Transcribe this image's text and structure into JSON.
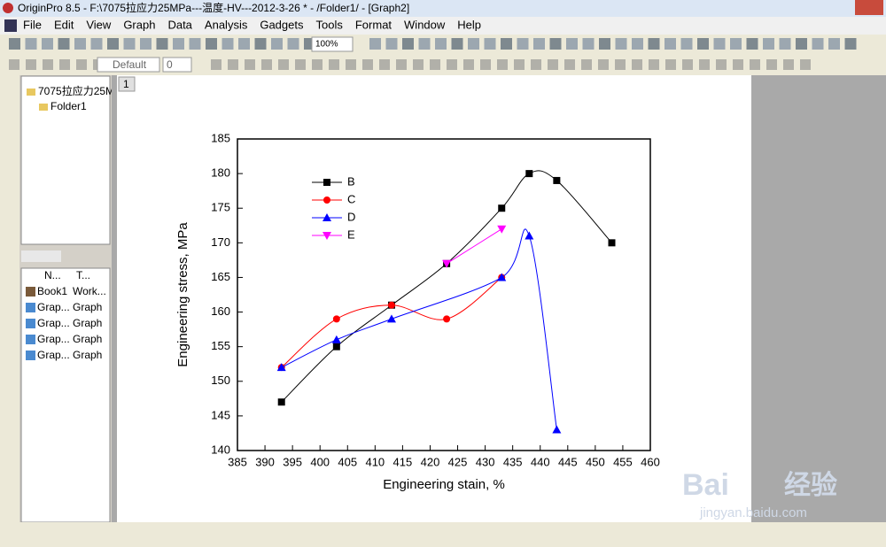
{
  "window": {
    "title": "OriginPro 8.5 - F:\\7075拉应力25MPa---温度-HV---2012-3-26 * - /Folder1/ - [Graph2]",
    "menu": [
      "File",
      "Edit",
      "View",
      "Graph",
      "Data",
      "Analysis",
      "Gadgets",
      "Tools",
      "Format",
      "Window",
      "Help"
    ],
    "zoom": "100%",
    "font": "Default",
    "font_size": "0"
  },
  "explorer": {
    "tree": [
      "7075拉应力25M",
      "Folder1"
    ],
    "headers": [
      "N...",
      "T..."
    ],
    "rows": [
      [
        "Book1",
        "Work..."
      ],
      [
        "Grap...",
        "Graph"
      ],
      [
        "Grap...",
        "Graph"
      ],
      [
        "Grap...",
        "Graph"
      ],
      [
        "Grap...",
        "Graph"
      ]
    ]
  },
  "page_tab": "1",
  "watermark": [
    "Bai",
    "经验",
    "jingyan.baidu.com"
  ],
  "chart_data": {
    "type": "line",
    "xlabel": "Engineering stain, %",
    "ylabel": "Engineering stress, MPa",
    "xlim": [
      385,
      460
    ],
    "xticks": [
      385,
      390,
      395,
      400,
      405,
      410,
      415,
      420,
      425,
      430,
      435,
      440,
      445,
      450,
      455,
      460
    ],
    "ylim": [
      140,
      185
    ],
    "yticks": [
      140,
      145,
      150,
      155,
      160,
      165,
      170,
      175,
      180,
      185
    ],
    "legend": "upper left",
    "series": [
      {
        "name": "B",
        "color": "#000000",
        "marker": "square",
        "x": [
          393,
          403,
          413,
          423,
          433,
          438,
          443,
          453
        ],
        "values": [
          147,
          155,
          161,
          167,
          175,
          180,
          179,
          170
        ]
      },
      {
        "name": "C",
        "color": "#ff0000",
        "marker": "circle",
        "x": [
          393,
          403,
          413,
          423,
          433
        ],
        "values": [
          152,
          159,
          161,
          159,
          165
        ]
      },
      {
        "name": "D",
        "color": "#0000ff",
        "marker": "triangle",
        "x": [
          393,
          403,
          413,
          433,
          438,
          443
        ],
        "values": [
          152,
          156,
          159,
          165,
          171,
          143
        ]
      },
      {
        "name": "E",
        "color": "#ff00ff",
        "marker": "triangle-down",
        "x": [
          423,
          433
        ],
        "values": [
          167,
          172
        ]
      }
    ]
  }
}
